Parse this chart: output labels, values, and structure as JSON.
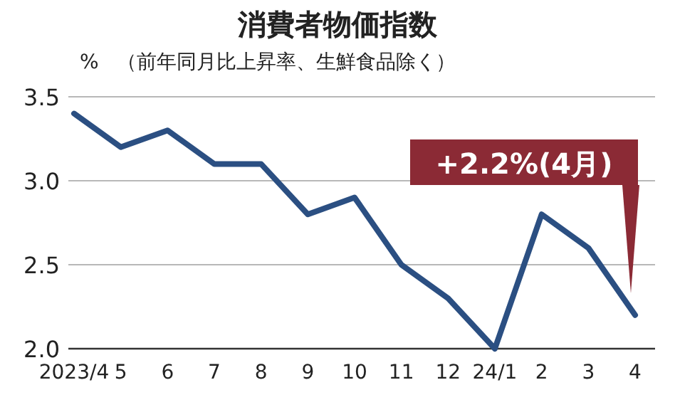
{
  "chart_data": {
    "type": "line",
    "title": "消費者物価指数",
    "subtitle": "（前年同月比上昇率、生鮮食品除く）",
    "ylabel": "%",
    "categories": [
      "2023/4",
      "5",
      "6",
      "7",
      "8",
      "9",
      "10",
      "11",
      "12",
      "24/1",
      "2",
      "3",
      "4"
    ],
    "series": [
      {
        "color": "#2b4f82",
        "values": [
          3.4,
          3.2,
          3.3,
          3.1,
          3.1,
          2.8,
          2.9,
          2.5,
          2.3,
          2.0,
          2.8,
          2.6,
          2.2
        ]
      }
    ],
    "ylim": [
      2.0,
      3.5
    ],
    "yticks": [
      {
        "value": 2,
        "label": "2.0"
      },
      2.5,
      {
        "value": 3,
        "label": "3.0"
      },
      3.5
    ],
    "grid": "y",
    "marker": "none",
    "line_style": "solid",
    "annotations": [
      "+2.2%(4月)"
    ]
  }
}
